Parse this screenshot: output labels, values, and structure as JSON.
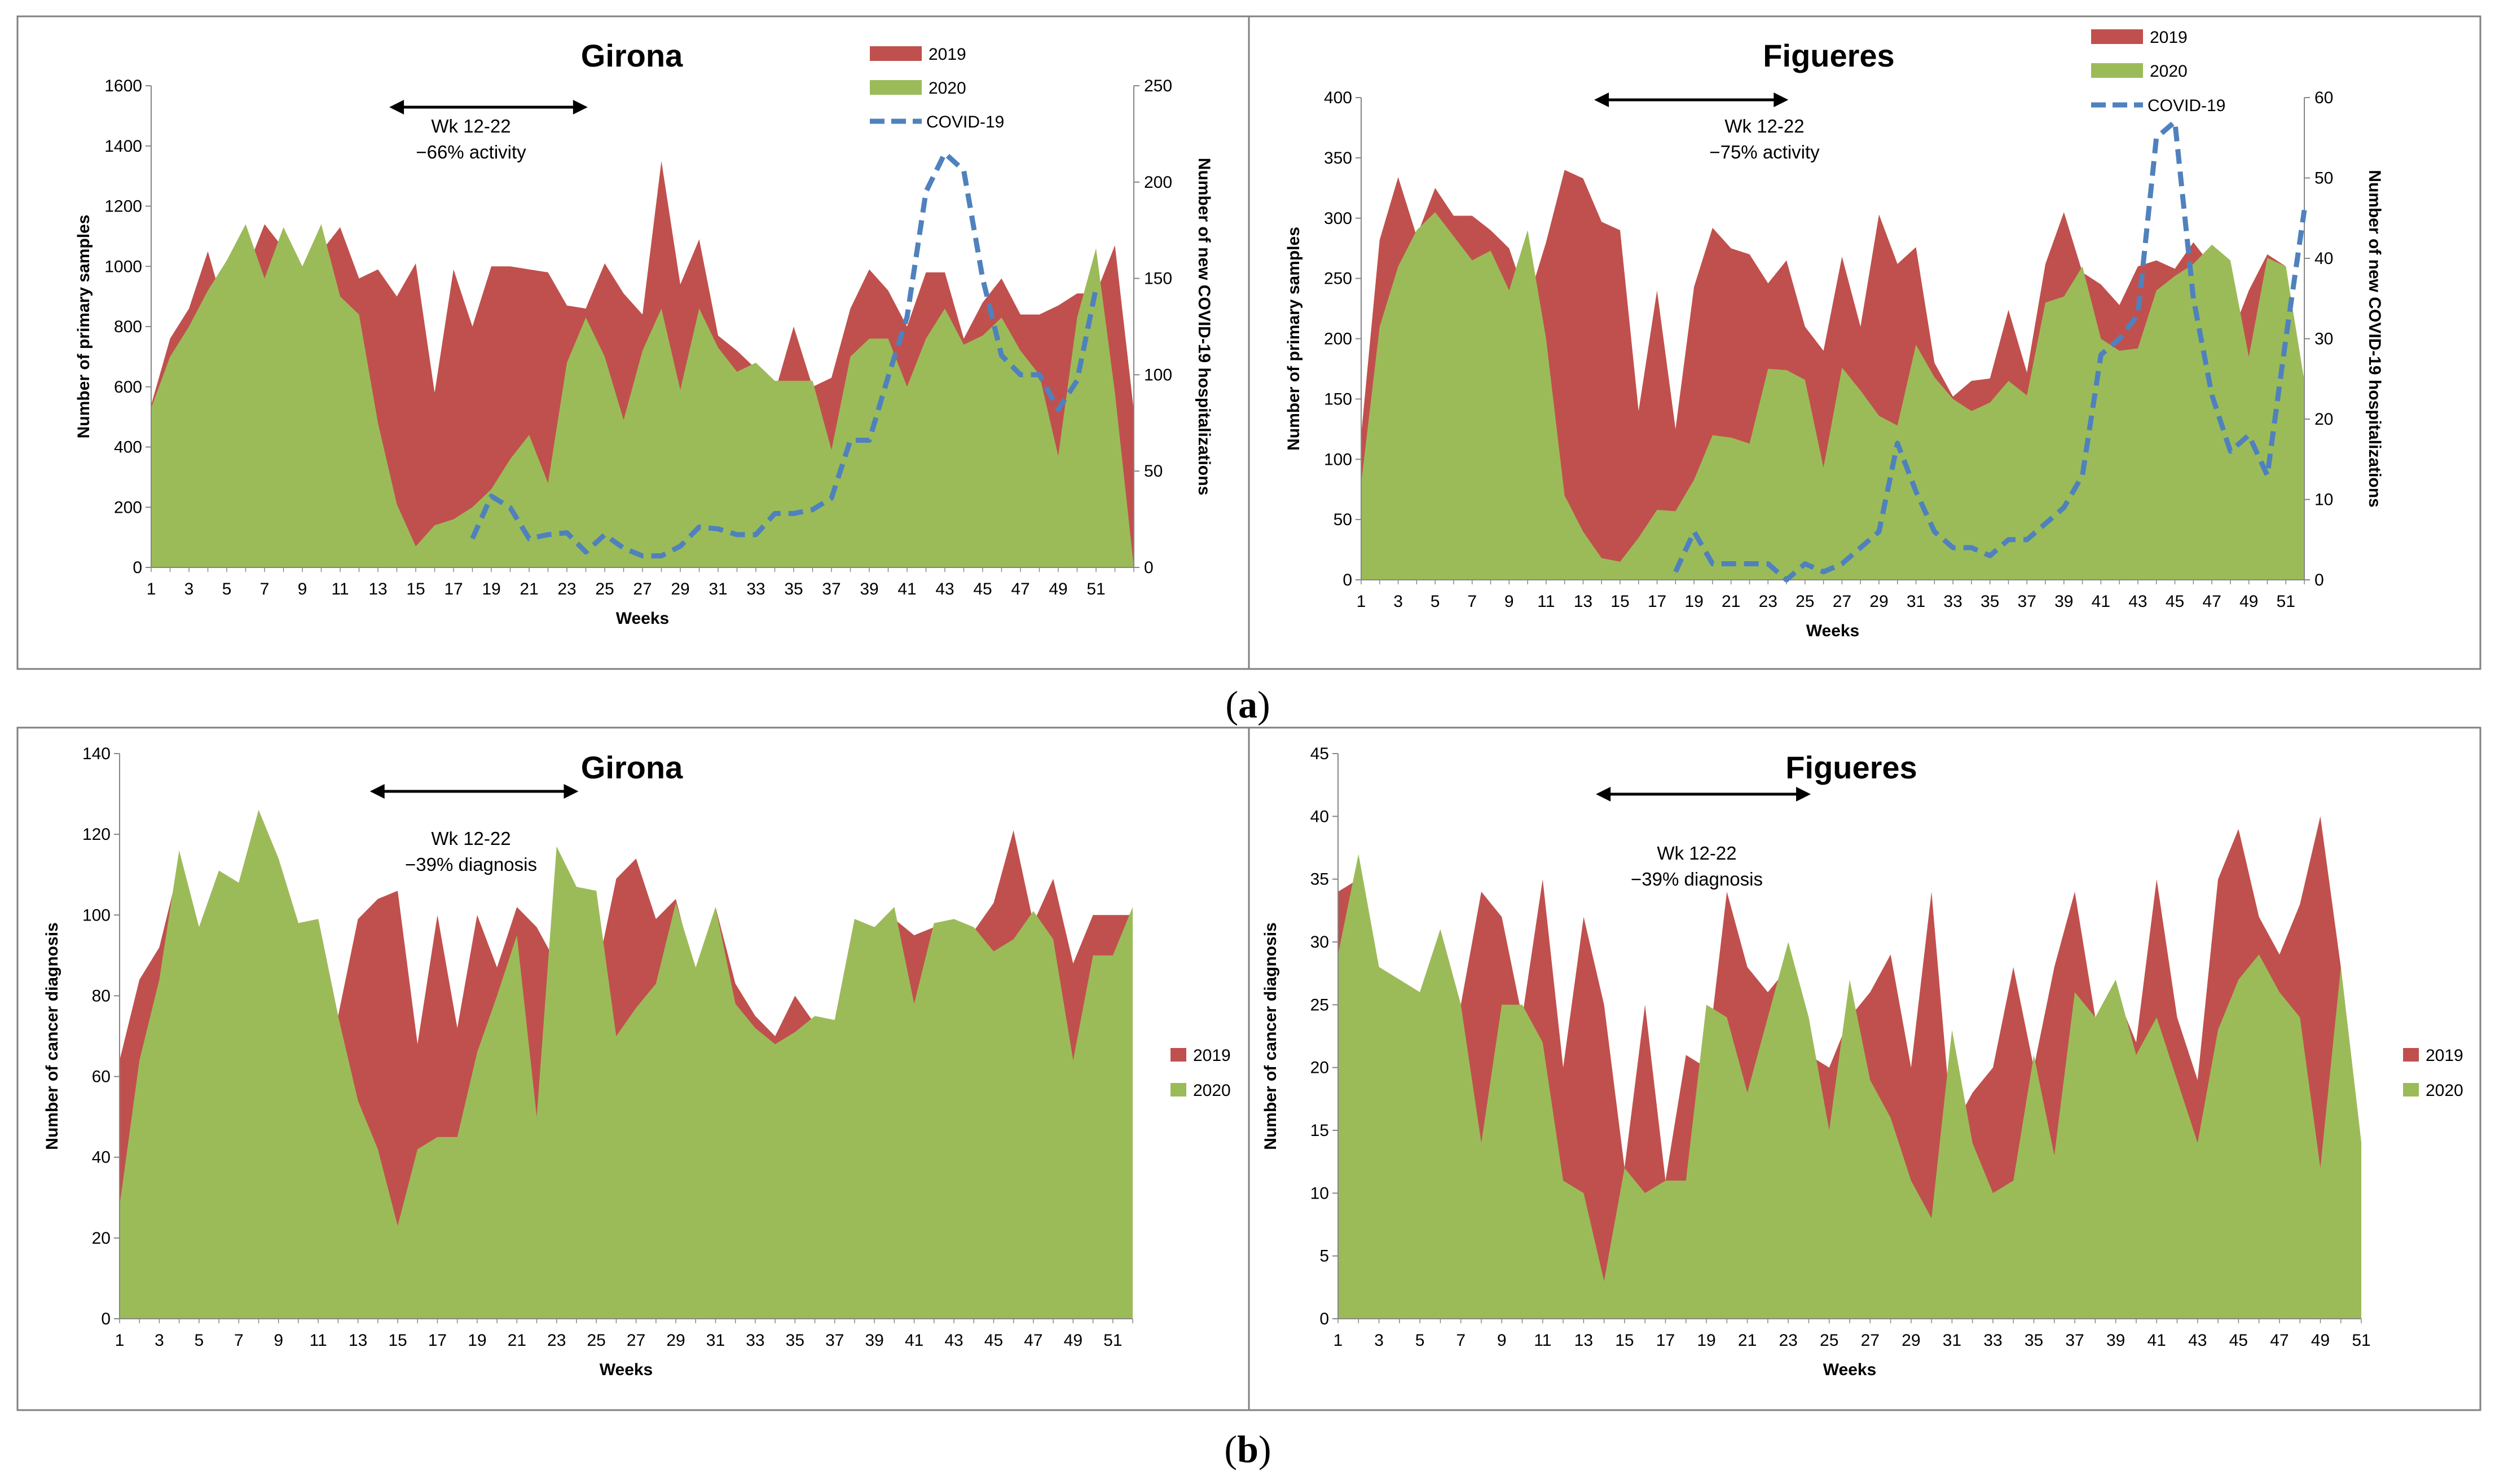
{
  "captions": {
    "a": "a",
    "b": "b"
  },
  "colors": {
    "y2019": "#c0504d",
    "y2020": "#9bbb59",
    "covid": "#4f81bd"
  },
  "chart_data": [
    {
      "id": "a-girona",
      "type": "area",
      "title": "Girona",
      "xlabel": "Weeks",
      "ylabel": "Number of primary samples",
      "y2label": "Number of new COVID-19 hospitalizations",
      "ylim": [
        0,
        1600
      ],
      "yticks": [
        0,
        200,
        400,
        600,
        800,
        1000,
        1200,
        1400,
        1600
      ],
      "y2lim": [
        0,
        250
      ],
      "y2ticks": [
        0,
        50,
        100,
        150,
        200,
        250
      ],
      "xticks": [
        1,
        3,
        5,
        7,
        9,
        11,
        13,
        15,
        17,
        19,
        21,
        23,
        25,
        27,
        29,
        31,
        33,
        35,
        37,
        39,
        41,
        43,
        45,
        47,
        49,
        51
      ],
      "annotation": {
        "range": "Wk 12-22",
        "text": "−66% activity",
        "from_week": 12,
        "to_week": 22
      },
      "legend": {
        "position": "top-right",
        "entries": [
          "2019",
          "2020",
          "COVID-19"
        ]
      },
      "series": [
        {
          "name": "2019",
          "values": [
            540,
            760,
            860,
            1050,
            830,
            980,
            1140,
            1060,
            1000,
            1050,
            1130,
            960,
            990,
            900,
            1010,
            580,
            990,
            800,
            1000,
            1000,
            990,
            980,
            870,
            860,
            1010,
            910,
            840,
            1350,
            940,
            1090,
            770,
            720,
            660,
            580,
            800,
            600,
            630,
            860,
            990,
            920,
            800,
            980,
            980,
            760,
            880,
            960,
            840,
            840,
            870,
            910,
            910,
            1070,
            520
          ]
        },
        {
          "name": "2020",
          "values": [
            530,
            700,
            800,
            920,
            1020,
            1140,
            960,
            1130,
            1000,
            1140,
            900,
            840,
            480,
            210,
            70,
            140,
            160,
            200,
            260,
            360,
            440,
            280,
            680,
            830,
            700,
            490,
            720,
            860,
            590,
            860,
            730,
            650,
            680,
            620,
            620,
            620,
            390,
            700,
            760,
            760,
            600,
            760,
            860,
            740,
            770,
            830,
            720,
            640,
            370,
            830,
            1060,
            580
          ]
        },
        {
          "name": "COVID-19",
          "axis": "right",
          "start_week": 18,
          "values": [
            15,
            37,
            31,
            15,
            17,
            18,
            8,
            17,
            10,
            6,
            6,
            11,
            21,
            20,
            17,
            17,
            28,
            28,
            30,
            36,
            66,
            66,
            99,
            130,
            195,
            215,
            206,
            150,
            110,
            100,
            100,
            82,
            97,
            145
          ]
        }
      ]
    },
    {
      "id": "a-figueres",
      "type": "area",
      "title": "Figueres",
      "xlabel": "Weeks",
      "ylabel": "Number of primary samples",
      "y2label": "Number of new COVID-19 hospitalizations",
      "ylim": [
        0,
        400
      ],
      "yticks": [
        0,
        50,
        100,
        150,
        200,
        250,
        300,
        350,
        400
      ],
      "y2lim": [
        0,
        60
      ],
      "y2ticks": [
        0,
        10,
        20,
        30,
        40,
        50,
        60
      ],
      "xticks": [
        1,
        3,
        5,
        7,
        9,
        11,
        13,
        15,
        17,
        19,
        21,
        23,
        25,
        27,
        29,
        31,
        33,
        35,
        37,
        39,
        41,
        43,
        45,
        47,
        49,
        51
      ],
      "annotation": {
        "range": "Wk 12-22",
        "text": "−75% activity",
        "from_week": 12,
        "to_week": 22
      },
      "legend": {
        "position": "top-right",
        "entries": [
          "2019",
          "2020",
          "COVID-19"
        ]
      },
      "series": [
        {
          "name": "2019",
          "values": [
            120,
            282,
            334,
            285,
            325,
            302,
            302,
            290,
            275,
            230,
            280,
            340,
            333,
            297,
            290,
            140,
            240,
            125,
            243,
            292,
            275,
            270,
            246,
            265,
            210,
            190,
            268,
            210,
            303,
            262,
            276,
            180,
            152,
            165,
            167,
            224,
            172,
            262,
            305,
            255,
            245,
            228,
            260,
            265,
            258,
            280,
            260,
            200,
            240,
            270,
            260,
            160
          ]
        },
        {
          "name": "2020",
          "values": [
            80,
            210,
            260,
            290,
            305,
            285,
            265,
            273,
            240,
            290,
            200,
            70,
            40,
            18,
            15,
            35,
            58,
            57,
            83,
            120,
            118,
            113,
            175,
            174,
            166,
            93,
            176,
            157,
            136,
            128,
            195,
            168,
            150,
            140,
            147,
            165,
            153,
            230,
            235,
            260,
            200,
            190,
            192,
            240,
            252,
            262,
            278,
            265,
            185,
            267,
            260,
            165
          ]
        },
        {
          "name": "COVID-19",
          "axis": "right",
          "start_week": 18,
          "values": [
            1,
            6,
            2,
            2,
            2,
            2,
            0,
            2,
            1,
            2,
            4,
            6,
            17,
            11,
            6,
            4,
            4,
            3,
            5,
            5,
            7,
            9,
            13,
            28,
            30,
            33,
            55,
            57,
            35,
            23,
            16,
            18,
            13,
            30,
            46
          ]
        }
      ]
    },
    {
      "id": "b-girona",
      "type": "area",
      "title": "Girona",
      "xlabel": "Weeks",
      "ylabel": "Number of cancer diagnosis",
      "ylim": [
        0,
        140
      ],
      "yticks": [
        0,
        20,
        40,
        60,
        80,
        100,
        120,
        140
      ],
      "xticks": [
        1,
        3,
        5,
        7,
        9,
        11,
        13,
        15,
        17,
        19,
        21,
        23,
        25,
        27,
        29,
        31,
        33,
        35,
        37,
        39,
        41,
        43,
        45,
        47,
        49,
        51
      ],
      "annotation": {
        "range": "Wk 12-22",
        "text": "−39% diagnosis",
        "from_week": 12,
        "to_week": 22
      },
      "legend": {
        "position": "right",
        "entries": [
          "2019",
          "2020"
        ]
      },
      "series": [
        {
          "name": "2019",
          "values": [
            64,
            84,
            92,
            112,
            97,
            111,
            108,
            126,
            114,
            98,
            99,
            75,
            99,
            104,
            106,
            68,
            100,
            72,
            100,
            87,
            102,
            97,
            88,
            96,
            85,
            109,
            114,
            99,
            104,
            85,
            102,
            83,
            75,
            70,
            80,
            73,
            74,
            99,
            97,
            99,
            95,
            97,
            99,
            96,
            103,
            121,
            98,
            109,
            88,
            100,
            100,
            100
          ]
        },
        {
          "name": "2020",
          "values": [
            28,
            64,
            84,
            116,
            97,
            111,
            108,
            126,
            114,
            98,
            99,
            75,
            54,
            42,
            23,
            42,
            45,
            45,
            66,
            80,
            95,
            50,
            117,
            107,
            106,
            70,
            77,
            83,
            103,
            87,
            102,
            78,
            72,
            68,
            71,
            75,
            74,
            99,
            97,
            102,
            78,
            98,
            99,
            97,
            91,
            94,
            101,
            94,
            64,
            90,
            90,
            102
          ]
        }
      ]
    },
    {
      "id": "b-figueres",
      "type": "area",
      "title": "Figueres",
      "xlabel": "Weeks",
      "ylabel": "Number of cancer diagnosis",
      "ylim": [
        0,
        45
      ],
      "yticks": [
        0,
        5,
        10,
        15,
        20,
        25,
        30,
        35,
        40,
        45
      ],
      "xticks": [
        1,
        3,
        5,
        7,
        9,
        11,
        13,
        15,
        17,
        19,
        21,
        23,
        25,
        27,
        29,
        31,
        33,
        35,
        37,
        39,
        41,
        43,
        45,
        47,
        49,
        51
      ],
      "annotation": {
        "range": "Wk 12-22",
        "text": "−39% diagnosis",
        "from_week": 12,
        "to_week": 22
      },
      "legend": {
        "position": "right",
        "entries": [
          "2019",
          "2020"
        ]
      },
      "series": [
        {
          "name": "2019",
          "values": [
            34,
            35,
            28,
            27,
            26,
            31,
            25,
            34,
            32,
            24,
            35,
            20,
            32,
            25,
            12,
            25,
            11,
            21,
            20,
            34,
            28,
            26,
            28,
            21,
            20,
            24,
            26,
            29,
            20,
            34,
            15,
            18,
            20,
            28,
            20,
            28,
            34,
            24,
            26,
            22,
            35,
            24,
            19,
            35,
            39,
            32,
            29,
            33,
            40,
            28,
            14
          ]
        },
        {
          "name": "2020",
          "values": [
            29,
            37,
            28,
            27,
            26,
            31,
            25,
            14,
            25,
            25,
            22,
            11,
            10,
            3,
            12,
            10,
            11,
            11,
            25,
            24,
            18,
            24,
            30,
            24,
            15,
            27,
            19,
            16,
            11,
            8,
            23,
            14,
            10,
            11,
            21,
            13,
            26,
            24,
            27,
            21,
            24,
            19,
            14,
            23,
            27,
            29,
            26,
            24,
            12,
            28,
            14
          ]
        }
      ]
    }
  ]
}
